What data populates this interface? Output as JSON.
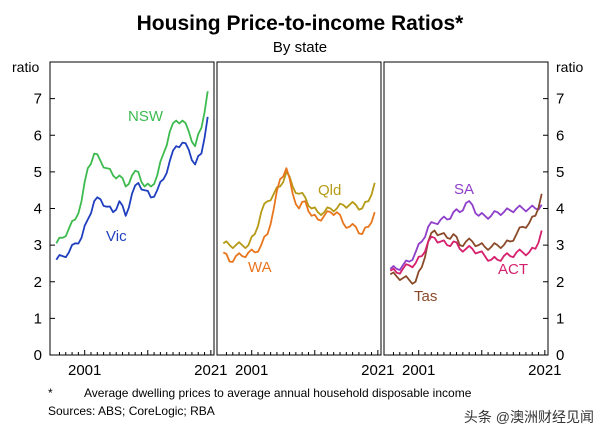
{
  "chart_data": {
    "type": "line",
    "title": "Housing Price-to-income Ratios*",
    "subtitle": "By state",
    "ylabel_left": "ratio",
    "ylabel_right": "ratio",
    "ylim": [
      0,
      8
    ],
    "yticks": [
      0,
      1,
      2,
      3,
      4,
      5,
      6,
      7
    ],
    "xlim": [
      1996,
      2022
    ],
    "xticks": [
      "2001",
      "2021"
    ],
    "panels": [
      {
        "name": "NSW-Vic",
        "series": [
          {
            "name": "NSW",
            "color": "#3dbb4f",
            "x": [
              1997,
              1998,
              1999,
              2000,
              2001,
              2002,
              2003,
              2004,
              2005,
              2006,
              2007,
              2008,
              2009,
              2010,
              2011,
              2012,
              2013,
              2014,
              2015,
              2016,
              2017,
              2018,
              2019,
              2020,
              2021
            ],
            "y": [
              3.05,
              3.2,
              3.45,
              3.7,
              4.2,
              5.1,
              5.5,
              5.3,
              5.1,
              4.9,
              4.9,
              4.6,
              4.9,
              5.0,
              4.6,
              4.6,
              4.9,
              5.5,
              6.1,
              6.4,
              6.4,
              6.1,
              5.7,
              6.2,
              7.2
            ]
          },
          {
            "name": "Vic",
            "color": "#1f3fbf",
            "x": [
              1997,
              1998,
              1999,
              2000,
              2001,
              2002,
              2003,
              2004,
              2005,
              2006,
              2007,
              2008,
              2009,
              2010,
              2011,
              2012,
              2013,
              2014,
              2015,
              2016,
              2017,
              2018,
              2019,
              2020,
              2021
            ],
            "y": [
              2.6,
              2.7,
              2.8,
              3.05,
              3.2,
              3.7,
              4.2,
              4.25,
              4.05,
              3.9,
              4.2,
              3.8,
              4.4,
              4.7,
              4.5,
              4.3,
              4.5,
              4.8,
              5.3,
              5.7,
              5.8,
              5.6,
              5.2,
              5.5,
              6.5
            ]
          }
        ]
      },
      {
        "name": "Qld-WA",
        "series": [
          {
            "name": "Qld",
            "color": "#b59a14",
            "x": [
              1997,
              1998,
              1999,
              2000,
              2001,
              2002,
              2003,
              2004,
              2005,
              2006,
              2007,
              2008,
              2009,
              2010,
              2011,
              2012,
              2013,
              2014,
              2015,
              2016,
              2017,
              2018,
              2019,
              2020,
              2021
            ],
            "y": [
              3.05,
              3.0,
              3.0,
              3.0,
              3.0,
              3.3,
              3.9,
              4.2,
              4.4,
              4.6,
              5.0,
              4.6,
              4.4,
              4.3,
              4.0,
              3.9,
              3.9,
              4.0,
              4.0,
              4.1,
              4.1,
              4.1,
              4.0,
              4.2,
              4.7
            ]
          },
          {
            "name": "WA",
            "color": "#e8761e",
            "x": [
              1997,
              1998,
              1999,
              2000,
              2001,
              2002,
              2003,
              2004,
              2005,
              2006,
              2007,
              2008,
              2009,
              2010,
              2011,
              2012,
              2013,
              2014,
              2015,
              2016,
              2017,
              2018,
              2019,
              2020,
              2021
            ],
            "y": [
              2.8,
              2.55,
              2.7,
              2.7,
              2.8,
              2.8,
              3.0,
              3.3,
              4.0,
              4.8,
              5.1,
              4.4,
              4.0,
              4.2,
              3.8,
              3.7,
              3.8,
              3.9,
              3.9,
              3.6,
              3.5,
              3.5,
              3.3,
              3.5,
              3.9
            ]
          }
        ]
      },
      {
        "name": "SA-Tas-ACT",
        "series": [
          {
            "name": "SA",
            "color": "#8f3fc9",
            "x": [
              1997,
              1998,
              1999,
              2000,
              2001,
              2002,
              2003,
              2004,
              2005,
              2006,
              2007,
              2008,
              2009,
              2010,
              2011,
              2012,
              2013,
              2014,
              2015,
              2016,
              2017,
              2018,
              2019,
              2020,
              2021
            ],
            "y": [
              2.35,
              2.35,
              2.45,
              2.55,
              2.8,
              3.1,
              3.5,
              3.6,
              3.7,
              3.7,
              3.9,
              3.9,
              4.15,
              4.1,
              3.8,
              3.8,
              3.8,
              3.9,
              3.9,
              3.95,
              4.0,
              4.0,
              4.0,
              4.0,
              4.1
            ]
          },
          {
            "name": "Tas",
            "color": "#8a4a2a",
            "x": [
              1997,
              1998,
              1999,
              2000,
              2001,
              2002,
              2003,
              2004,
              2005,
              2006,
              2007,
              2008,
              2009,
              2010,
              2011,
              2012,
              2013,
              2014,
              2015,
              2016,
              2017,
              2018,
              2019,
              2020,
              2021
            ],
            "y": [
              2.2,
              2.15,
              2.1,
              2.05,
              2.0,
              2.4,
              3.1,
              3.4,
              3.3,
              3.2,
              3.3,
              3.0,
              3.1,
              3.1,
              3.0,
              2.95,
              2.95,
              3.0,
              3.0,
              3.1,
              3.3,
              3.5,
              3.6,
              3.8,
              4.4
            ]
          },
          {
            "name": "ACT",
            "color": "#d6206d",
            "x": [
              1997,
              1998,
              1999,
              2000,
              2001,
              2002,
              2003,
              2004,
              2005,
              2006,
              2007,
              2008,
              2009,
              2010,
              2011,
              2012,
              2013,
              2014,
              2015,
              2016,
              2017,
              2018,
              2019,
              2020,
              2021
            ],
            "y": [
              2.3,
              2.25,
              2.35,
              2.45,
              2.5,
              2.7,
              3.1,
              3.2,
              3.1,
              3.0,
              3.1,
              2.9,
              2.9,
              2.9,
              2.8,
              2.7,
              2.6,
              2.6,
              2.7,
              2.7,
              2.8,
              2.8,
              2.8,
              2.9,
              3.4
            ]
          }
        ]
      }
    ]
  },
  "footnote": "Average dwelling prices to average annual household disposable income",
  "footnote_marker": "*",
  "sources": "Sources: ABS; CoreLogic; RBA",
  "watermark": "头条 @澳洲财经见闻"
}
